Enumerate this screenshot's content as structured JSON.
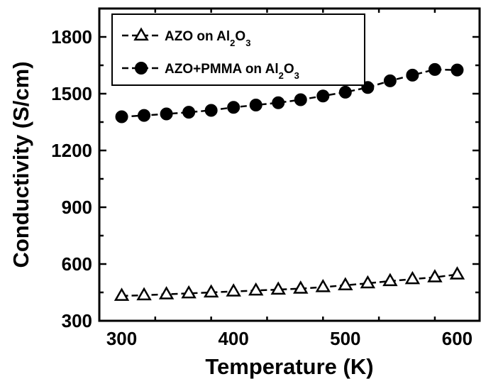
{
  "chart_data": {
    "type": "line",
    "title": "",
    "xlabel": "Temperature (K)",
    "ylabel": "Conductivity (S/cm)",
    "xlim": [
      280,
      620
    ],
    "ylim": [
      300,
      1950
    ],
    "xticks": [
      300,
      400,
      500,
      600
    ],
    "yticks": [
      300,
      600,
      900,
      1200,
      1500,
      1800
    ],
    "x": [
      300,
      320,
      340,
      360,
      380,
      400,
      420,
      440,
      460,
      480,
      500,
      520,
      540,
      560,
      580,
      600
    ],
    "series": [
      {
        "name": "AZO on Al2O3",
        "marker": "open-triangle",
        "values": [
          432,
          435,
          440,
          445,
          450,
          455,
          460,
          465,
          470,
          478,
          488,
          498,
          510,
          520,
          530,
          545
        ]
      },
      {
        "name": "AZO+PMMA on Al2O3",
        "marker": "filled-circle",
        "values": [
          1378,
          1385,
          1393,
          1402,
          1412,
          1428,
          1440,
          1452,
          1468,
          1488,
          1508,
          1533,
          1568,
          1598,
          1628,
          1625
        ]
      }
    ],
    "legend": {
      "position": "top-left",
      "entries": [
        {
          "text": "AZO on Al",
          "sub1": "2",
          "mid": "O",
          "sub2": "3"
        },
        {
          "text": "AZO+PMMA on Al",
          "sub1": "2",
          "mid": "O",
          "sub2": "3"
        }
      ]
    },
    "grid": false
  }
}
